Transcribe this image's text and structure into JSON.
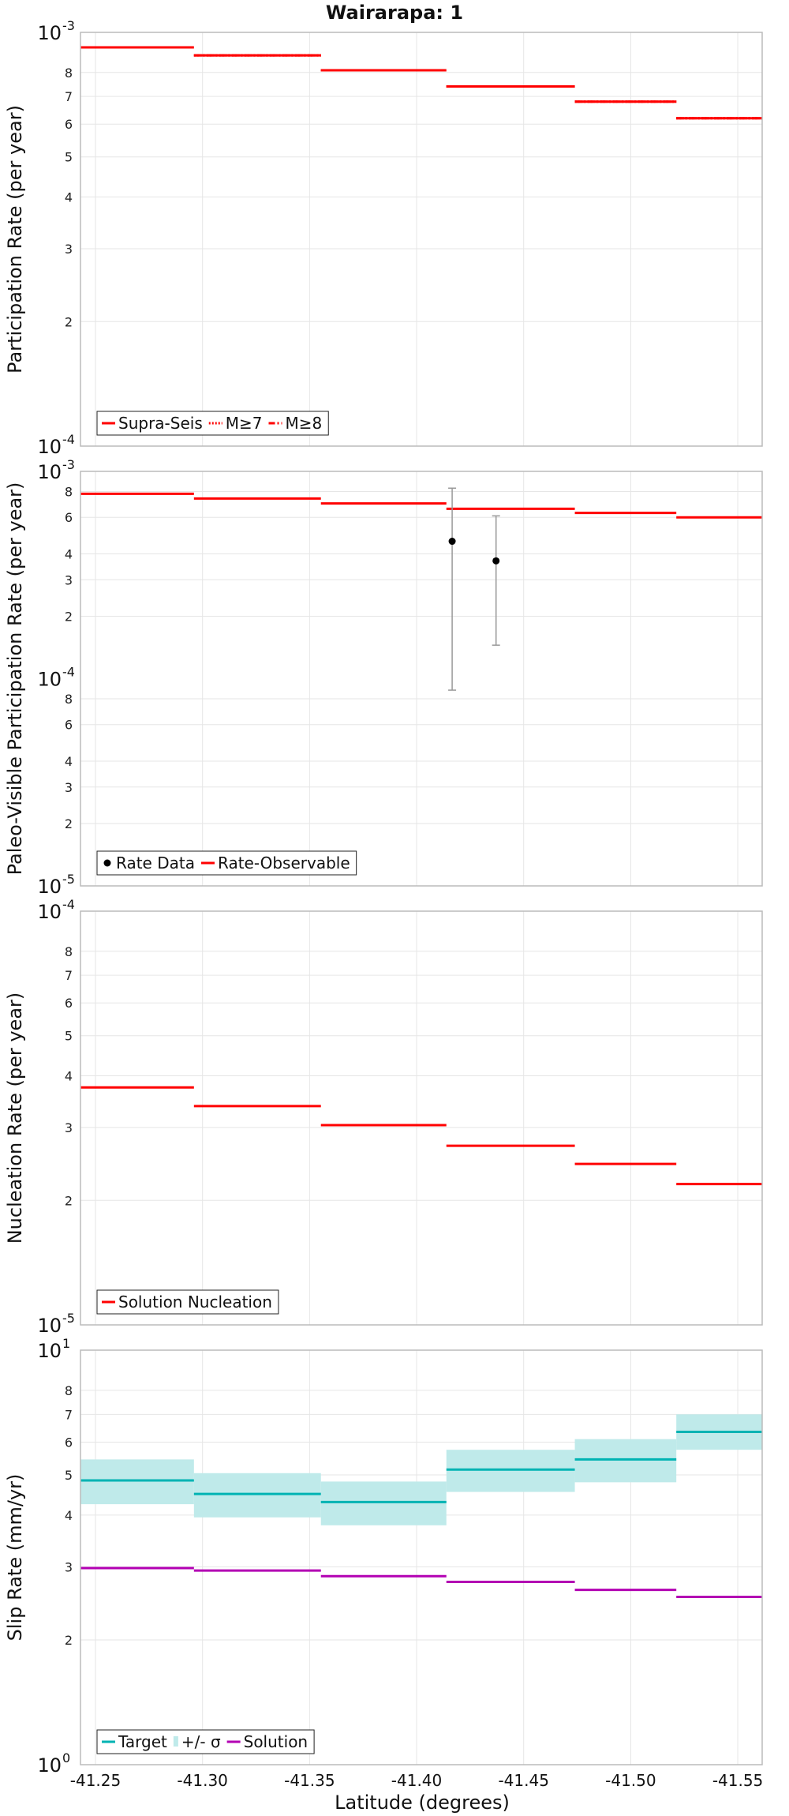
{
  "title": "Wairarapa: 1",
  "xlabel": "Latitude (degrees)",
  "x_ticks": [
    "-41.25",
    "-41.30",
    "-41.35",
    "-41.40",
    "-41.45",
    "-41.50",
    "-41.55"
  ],
  "colors": {
    "red": "#ff0000",
    "cyan": "#00b3b3",
    "band": "#bfeaea",
    "magenta": "#b300b3",
    "black": "#000000",
    "grid": "#e6e6e6",
    "frame": "#bbbbbb"
  },
  "chart_data": [
    {
      "type": "line",
      "ylabel": "Participation Rate (per year)",
      "yscale": "log",
      "ylim": [
        0.0001,
        0.001
      ],
      "xlim": [
        -41.243,
        -41.5614
      ],
      "bin_edges": [
        -41.243,
        -41.296,
        -41.3553,
        -41.4139,
        -41.4739,
        -41.5213,
        -41.5614
      ],
      "major_ticks": [
        {
          "base": "10",
          "exp": "-4",
          "value": 0.0001
        },
        {
          "base": "10",
          "exp": "-3",
          "value": 0.001
        }
      ],
      "minor_ticks": [
        2,
        3,
        4,
        5,
        6,
        7,
        8
      ],
      "series": [
        {
          "name": "Supra-Seis",
          "style": "solid",
          "values": [
            0.00092,
            0.00088,
            0.00081,
            0.00074,
            0.00068,
            0.00062
          ]
        },
        {
          "name": "M≥7",
          "style": "dotted",
          "values": [
            0.00092,
            0.00088,
            0.00081,
            0.00074,
            0.00068,
            0.00062
          ]
        },
        {
          "name": "M≥8",
          "style": "dashdot",
          "values": [
            0.00092,
            0.00088,
            0.00081,
            0.00074,
            0.00068,
            0.00062
          ]
        }
      ],
      "legend": [
        "Supra-Seis",
        "M≥7",
        "M≥8"
      ],
      "legend_position": "bottom-left"
    },
    {
      "type": "line",
      "ylabel": "Paleo-Visible Participation Rate (per year)",
      "yscale": "log",
      "ylim": [
        1e-05,
        0.001
      ],
      "xlim": [
        -41.243,
        -41.5614
      ],
      "bin_edges": [
        -41.243,
        -41.296,
        -41.3553,
        -41.4139,
        -41.4739,
        -41.5213,
        -41.5614
      ],
      "major_ticks": [
        {
          "base": "10",
          "exp": "-5",
          "value": 1e-05
        },
        {
          "base": "10",
          "exp": "-4",
          "value": 0.0001
        },
        {
          "base": "10",
          "exp": "-3",
          "value": 0.001
        }
      ],
      "minor_ticks": [
        2,
        3,
        4,
        6,
        8
      ],
      "series": [
        {
          "name": "Rate-Observable",
          "style": "solid",
          "values": [
            0.00078,
            0.00074,
            0.0007,
            0.00066,
            0.00063,
            0.0006
          ]
        }
      ],
      "points": [
        {
          "name": "Rate Data",
          "x": -41.4166,
          "y": 0.00046,
          "lower": 8.8e-05,
          "upper": 0.00083
        },
        {
          "name": "Rate Data",
          "x": -41.4371,
          "y": 0.00037,
          "lower": 0.000145,
          "upper": 0.00061
        }
      ],
      "legend": [
        "Rate Data",
        "Rate-Observable"
      ],
      "legend_position": "bottom-left"
    },
    {
      "type": "line",
      "ylabel": "Nucleation Rate (per year)",
      "yscale": "log",
      "ylim": [
        1e-05,
        0.0001
      ],
      "xlim": [
        -41.243,
        -41.5614
      ],
      "bin_edges": [
        -41.243,
        -41.296,
        -41.3553,
        -41.4139,
        -41.4739,
        -41.5213,
        -41.5614
      ],
      "major_ticks": [
        {
          "base": "10",
          "exp": "-5",
          "value": 1e-05
        },
        {
          "base": "10",
          "exp": "-4",
          "value": 0.0001
        }
      ],
      "minor_ticks": [
        2,
        3,
        4,
        5,
        6,
        7,
        8
      ],
      "series": [
        {
          "name": "Solution Nucleation",
          "style": "solid",
          "values": [
            3.75e-05,
            3.38e-05,
            3.04e-05,
            2.71e-05,
            2.45e-05,
            2.19e-05
          ]
        }
      ],
      "legend": [
        "Solution Nucleation"
      ],
      "legend_position": "bottom-left"
    },
    {
      "type": "line",
      "ylabel": "Slip Rate (mm/yr)",
      "yscale": "log",
      "ylim": [
        1,
        10
      ],
      "xlim": [
        -41.243,
        -41.5614
      ],
      "bin_edges": [
        -41.243,
        -41.296,
        -41.3553,
        -41.4139,
        -41.4739,
        -41.5213,
        -41.5614
      ],
      "major_ticks": [
        {
          "base": "10",
          "exp": "0",
          "value": 1
        },
        {
          "base": "10",
          "exp": "1",
          "value": 10
        }
      ],
      "minor_ticks": [
        2,
        3,
        4,
        5,
        6,
        7,
        8
      ],
      "series": [
        {
          "name": "Target",
          "style": "solid",
          "values": [
            4.85,
            4.5,
            4.3,
            5.15,
            5.45,
            6.35
          ]
        },
        {
          "name": "Solution",
          "style": "solid",
          "values": [
            2.98,
            2.94,
            2.85,
            2.76,
            2.64,
            2.54
          ]
        }
      ],
      "bands": [
        {
          "name": "+/- σ",
          "lower": [
            4.25,
            3.95,
            3.78,
            4.55,
            4.8,
            5.75
          ],
          "upper": [
            5.45,
            5.05,
            4.82,
            5.75,
            6.1,
            7.0
          ]
        }
      ],
      "legend": [
        "Target",
        "+/- σ",
        "Solution"
      ],
      "legend_position": "bottom-left"
    }
  ]
}
